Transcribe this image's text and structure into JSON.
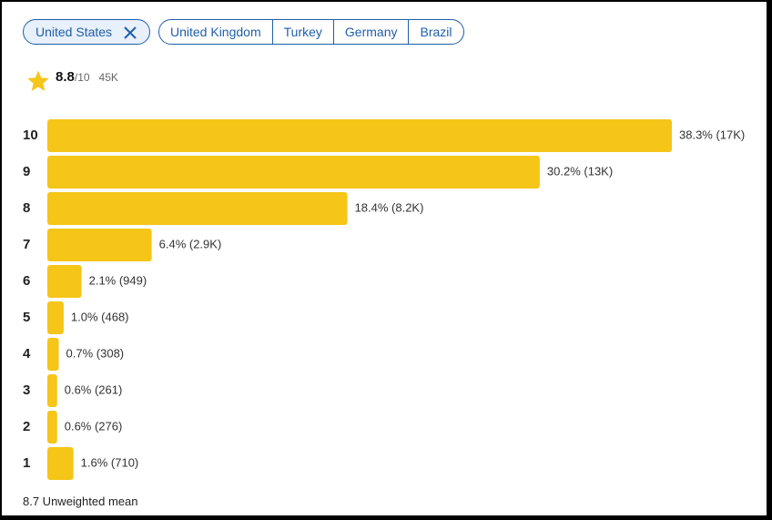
{
  "filters": {
    "selected": "United States",
    "options": [
      "United Kingdom",
      "Turkey",
      "Germany",
      "Brazil"
    ]
  },
  "rating": {
    "score": "8.8",
    "scale": "/10",
    "count": "45K"
  },
  "chart_data": {
    "type": "bar",
    "orientation": "horizontal",
    "categories": [
      "10",
      "9",
      "8",
      "7",
      "6",
      "5",
      "4",
      "3",
      "2",
      "1"
    ],
    "values": [
      38.3,
      30.2,
      18.4,
      6.4,
      2.1,
      1.0,
      0.7,
      0.6,
      0.6,
      1.6
    ],
    "value_labels": [
      "38.3% (17K)",
      "30.2% (13K)",
      "18.4% (8.2K)",
      "6.4% (2.9K)",
      "2.1% (949)",
      "1.0% (468)",
      "0.7% (308)",
      "0.6% (261)",
      "0.6% (276)",
      "1.6% (710)"
    ],
    "color": "#f5c518"
  },
  "footer": "8.7 Unweighted mean"
}
